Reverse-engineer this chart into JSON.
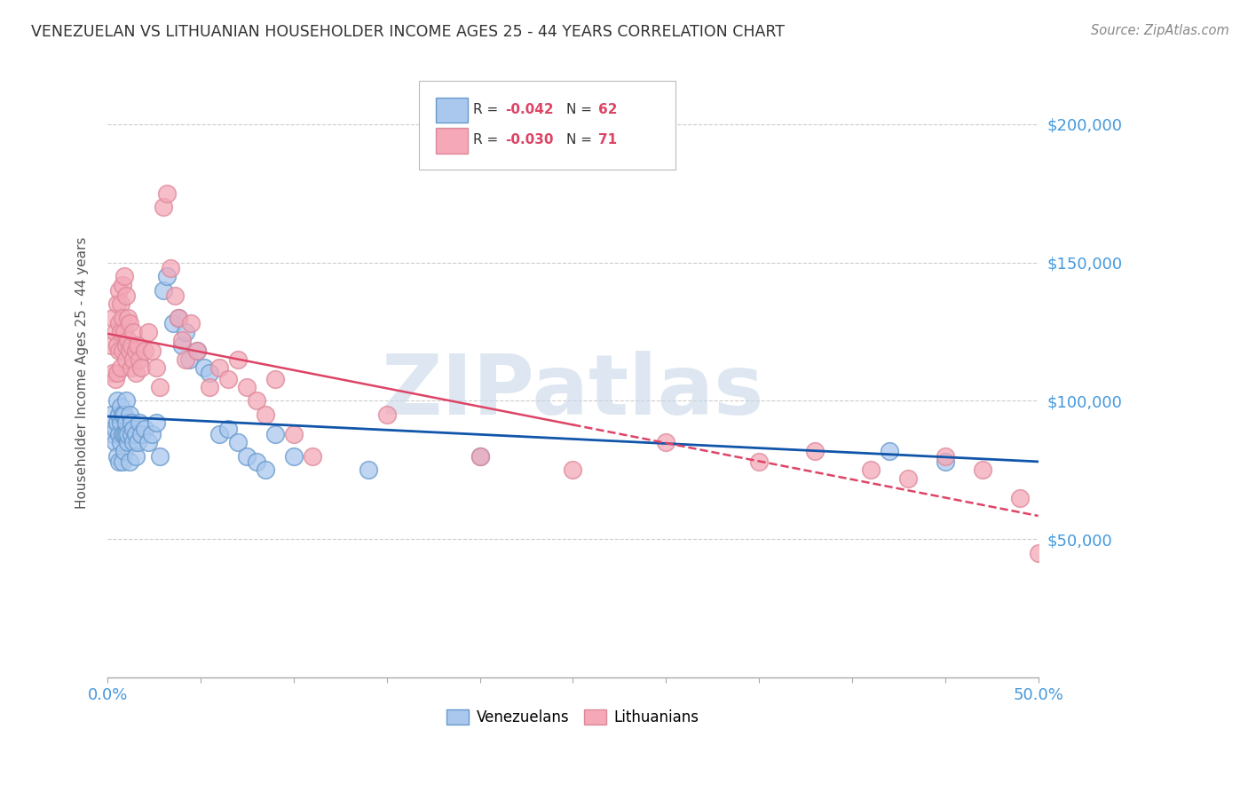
{
  "title": "VENEZUELAN VS LITHUANIAN HOUSEHOLDER INCOME AGES 25 - 44 YEARS CORRELATION CHART",
  "source": "Source: ZipAtlas.com",
  "ylabel": "Householder Income Ages 25 - 44 years",
  "xlim": [
    0.0,
    0.5
  ],
  "ylim": [
    0,
    220000
  ],
  "yticks": [
    0,
    50000,
    100000,
    150000,
    200000
  ],
  "ytick_labels": [
    "",
    "$50,000",
    "$100,000",
    "$150,000",
    "$200,000"
  ],
  "background_color": "#ffffff",
  "watermark": "ZIPatlas",
  "watermark_color": "#c8d8e8",
  "venezuelan_color": "#aac8ee",
  "venezuelan_edge": "#6699cc",
  "lithuanian_color": "#f4a8b8",
  "lithuanian_edge": "#dd8899",
  "venezuelan_R": -0.042,
  "venezuelan_N": 62,
  "lithuanian_R": -0.03,
  "lithuanian_N": 71,
  "venezuelan_line_color": "#1155aa",
  "lithuanian_line_color": "#dd4466",
  "grid_color": "#cccccc",
  "tick_color": "#4499dd",
  "axis_color": "#aaaaaa",
  "venezuelan_x": [
    0.002,
    0.003,
    0.004,
    0.004,
    0.005,
    0.005,
    0.005,
    0.006,
    0.006,
    0.006,
    0.007,
    0.007,
    0.007,
    0.008,
    0.008,
    0.008,
    0.009,
    0.009,
    0.009,
    0.01,
    0.01,
    0.01,
    0.011,
    0.011,
    0.012,
    0.012,
    0.013,
    0.013,
    0.014,
    0.014,
    0.015,
    0.015,
    0.016,
    0.017,
    0.018,
    0.02,
    0.022,
    0.024,
    0.026,
    0.028,
    0.03,
    0.032,
    0.035,
    0.038,
    0.04,
    0.042,
    0.044,
    0.048,
    0.052,
    0.055,
    0.06,
    0.065,
    0.07,
    0.075,
    0.08,
    0.085,
    0.09,
    0.1,
    0.14,
    0.2,
    0.42,
    0.45
  ],
  "venezuelan_y": [
    95000,
    88000,
    90000,
    85000,
    100000,
    92000,
    80000,
    88000,
    95000,
    78000,
    92000,
    85000,
    98000,
    88000,
    95000,
    78000,
    88000,
    95000,
    82000,
    88000,
    92000,
    100000,
    85000,
    88000,
    95000,
    78000,
    88000,
    92000,
    85000,
    90000,
    88000,
    80000,
    85000,
    92000,
    88000,
    90000,
    85000,
    88000,
    92000,
    80000,
    140000,
    145000,
    128000,
    130000,
    120000,
    125000,
    115000,
    118000,
    112000,
    110000,
    88000,
    90000,
    85000,
    80000,
    78000,
    75000,
    88000,
    80000,
    75000,
    80000,
    82000,
    78000
  ],
  "lithuanian_x": [
    0.002,
    0.003,
    0.003,
    0.004,
    0.004,
    0.005,
    0.005,
    0.005,
    0.006,
    0.006,
    0.006,
    0.007,
    0.007,
    0.007,
    0.008,
    0.008,
    0.008,
    0.009,
    0.009,
    0.01,
    0.01,
    0.01,
    0.011,
    0.011,
    0.012,
    0.012,
    0.013,
    0.013,
    0.014,
    0.014,
    0.015,
    0.015,
    0.016,
    0.017,
    0.018,
    0.02,
    0.022,
    0.024,
    0.026,
    0.028,
    0.03,
    0.032,
    0.034,
    0.036,
    0.038,
    0.04,
    0.042,
    0.045,
    0.048,
    0.055,
    0.06,
    0.065,
    0.07,
    0.075,
    0.08,
    0.085,
    0.09,
    0.1,
    0.11,
    0.15,
    0.2,
    0.25,
    0.3,
    0.35,
    0.38,
    0.41,
    0.43,
    0.45,
    0.47,
    0.49,
    0.5
  ],
  "lithuanian_y": [
    120000,
    130000,
    110000,
    125000,
    108000,
    135000,
    120000,
    110000,
    128000,
    140000,
    118000,
    135000,
    125000,
    112000,
    142000,
    130000,
    118000,
    145000,
    125000,
    138000,
    120000,
    115000,
    130000,
    122000,
    118000,
    128000,
    120000,
    112000,
    125000,
    115000,
    118000,
    110000,
    120000,
    115000,
    112000,
    118000,
    125000,
    118000,
    112000,
    105000,
    170000,
    175000,
    148000,
    138000,
    130000,
    122000,
    115000,
    128000,
    118000,
    105000,
    112000,
    108000,
    115000,
    105000,
    100000,
    95000,
    108000,
    88000,
    80000,
    95000,
    80000,
    75000,
    85000,
    78000,
    82000,
    75000,
    72000,
    80000,
    75000,
    65000,
    45000
  ]
}
